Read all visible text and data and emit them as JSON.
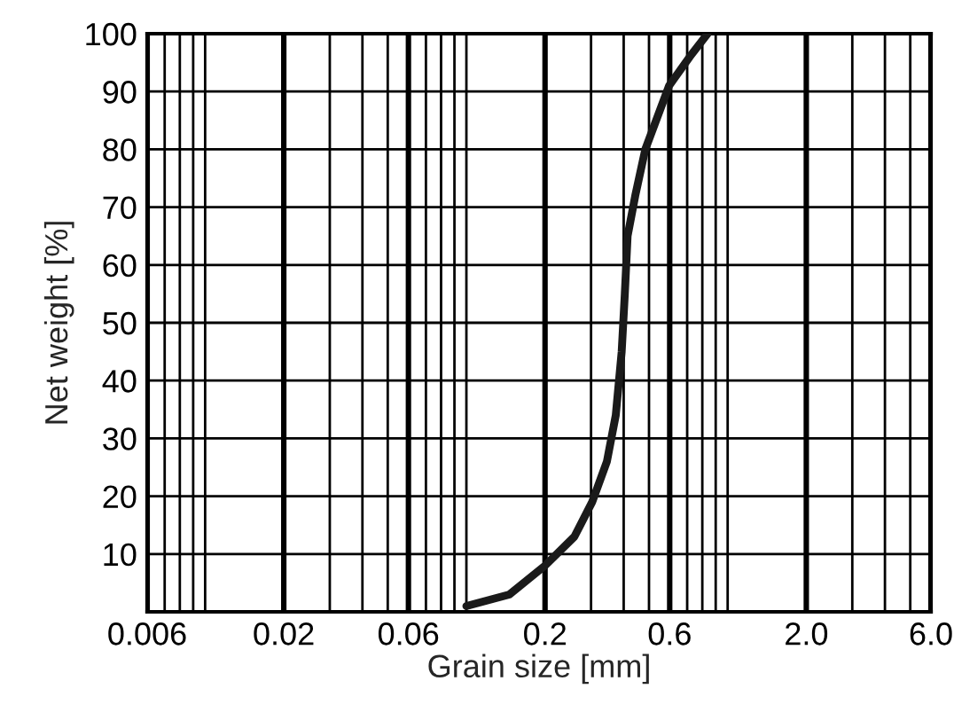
{
  "chart_data": {
    "type": "line",
    "xlabel": "Grain size [mm]",
    "ylabel": "Net weight [%]",
    "log": "x",
    "grid": true,
    "marker": "none",
    "line_style": "solid",
    "xlim": [
      0.006,
      6.0
    ],
    "xticks": [
      {
        "value": 0.006,
        "label": "0.006"
      },
      {
        "value": 0.007,
        "label": null
      },
      {
        "value": 0.008,
        "label": null
      },
      {
        "value": 0.009,
        "label": null
      },
      {
        "value": 0.01,
        "label": null
      },
      {
        "value": 0.02,
        "label": "0.02"
      },
      {
        "value": 0.03,
        "label": null
      },
      {
        "value": 0.04,
        "label": null
      },
      {
        "value": 0.05,
        "label": null
      },
      {
        "value": 0.06,
        "label": "0.06"
      },
      {
        "value": 0.07,
        "label": null
      },
      {
        "value": 0.08,
        "label": null
      },
      {
        "value": 0.09,
        "label": null
      },
      {
        "value": 0.1,
        "label": null
      },
      {
        "value": 0.2,
        "label": "0.2"
      },
      {
        "value": 0.3,
        "label": null
      },
      {
        "value": 0.4,
        "label": null
      },
      {
        "value": 0.5,
        "label": null
      },
      {
        "value": 0.6,
        "label": "0.6"
      },
      {
        "value": 0.7,
        "label": null
      },
      {
        "value": 0.8,
        "label": null
      },
      {
        "value": 0.9,
        "label": null
      },
      {
        "value": 1.0,
        "label": null
      },
      {
        "value": 2.0,
        "label": "2.0"
      },
      {
        "value": 3.0,
        "label": null
      },
      {
        "value": 4.0,
        "label": null
      },
      {
        "value": 5.0,
        "label": null
      },
      {
        "value": 6.0,
        "label": "6.0"
      }
    ],
    "ylim": [
      0,
      100
    ],
    "yticks": [
      {
        "value": 0,
        "label": null
      },
      10,
      20,
      30,
      40,
      50,
      60,
      70,
      80,
      90,
      100
    ],
    "series": [
      {
        "color": "#1a1a1a",
        "x": [
          0.1,
          0.146,
          0.2,
          0.259,
          0.303,
          0.345,
          0.373,
          0.393,
          0.404,
          0.414,
          0.443,
          0.484,
          0.597,
          0.716,
          0.838
        ],
        "values": [
          1,
          3,
          8,
          13,
          19,
          26,
          34,
          45,
          55,
          65,
          72,
          80,
          91,
          96,
          100
        ]
      }
    ]
  }
}
